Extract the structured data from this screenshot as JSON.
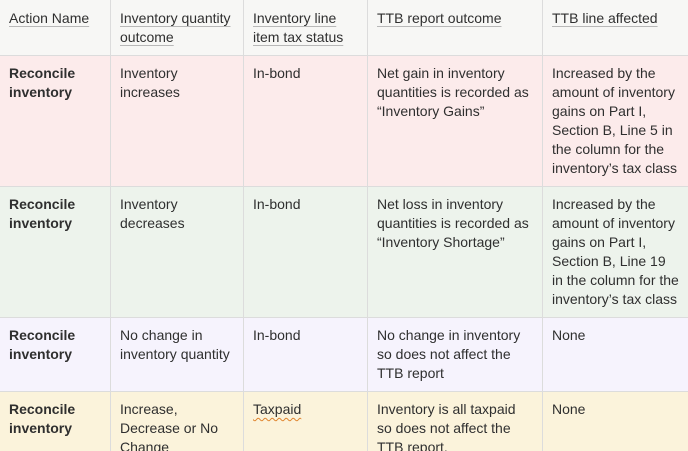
{
  "table": {
    "headers": [
      "Action Name",
      "Inventory quantity outcome",
      "Inventory line item tax status",
      "TTB report outcome",
      "TTB line affected"
    ],
    "rows": [
      {
        "action": "Reconcile inventory",
        "quantity_outcome": "Inventory increases",
        "tax_status": "In-bond",
        "ttb_outcome": "Net gain in inventory quantities is recorded as “Inventory Gains”",
        "ttb_line": "Increased by the amount of inventory gains on Part I, Section B, Line 5 in the column for the inventory’s tax class"
      },
      {
        "action": "Reconcile inventory",
        "quantity_outcome": "Inventory decreases",
        "tax_status": "In-bond",
        "ttb_outcome": "Net loss in inventory quantities is recorded as “Inventory Shortage”",
        "ttb_line": "Increased by the amount of inventory gains on Part I, Section B, Line 19 in the column for the inventory’s tax class"
      },
      {
        "action": "Reconcile inventory",
        "quantity_outcome": "No change in inventory quantity",
        "tax_status": "In-bond",
        "ttb_outcome": "No change in inventory so does not affect the TTB report",
        "ttb_line": "None"
      },
      {
        "action": "Reconcile inventory",
        "quantity_outcome": "Increase, Decrease or No Change",
        "tax_status": "Taxpaid",
        "ttb_outcome": "Inventory is all taxpaid so does not affect the TTB report.",
        "ttb_line": "None"
      }
    ],
    "row_colors": [
      "#fcebeb",
      "#edf3ec",
      "#f6f3fd",
      "#fbf3db"
    ],
    "header_color": "#f7f7f5"
  }
}
